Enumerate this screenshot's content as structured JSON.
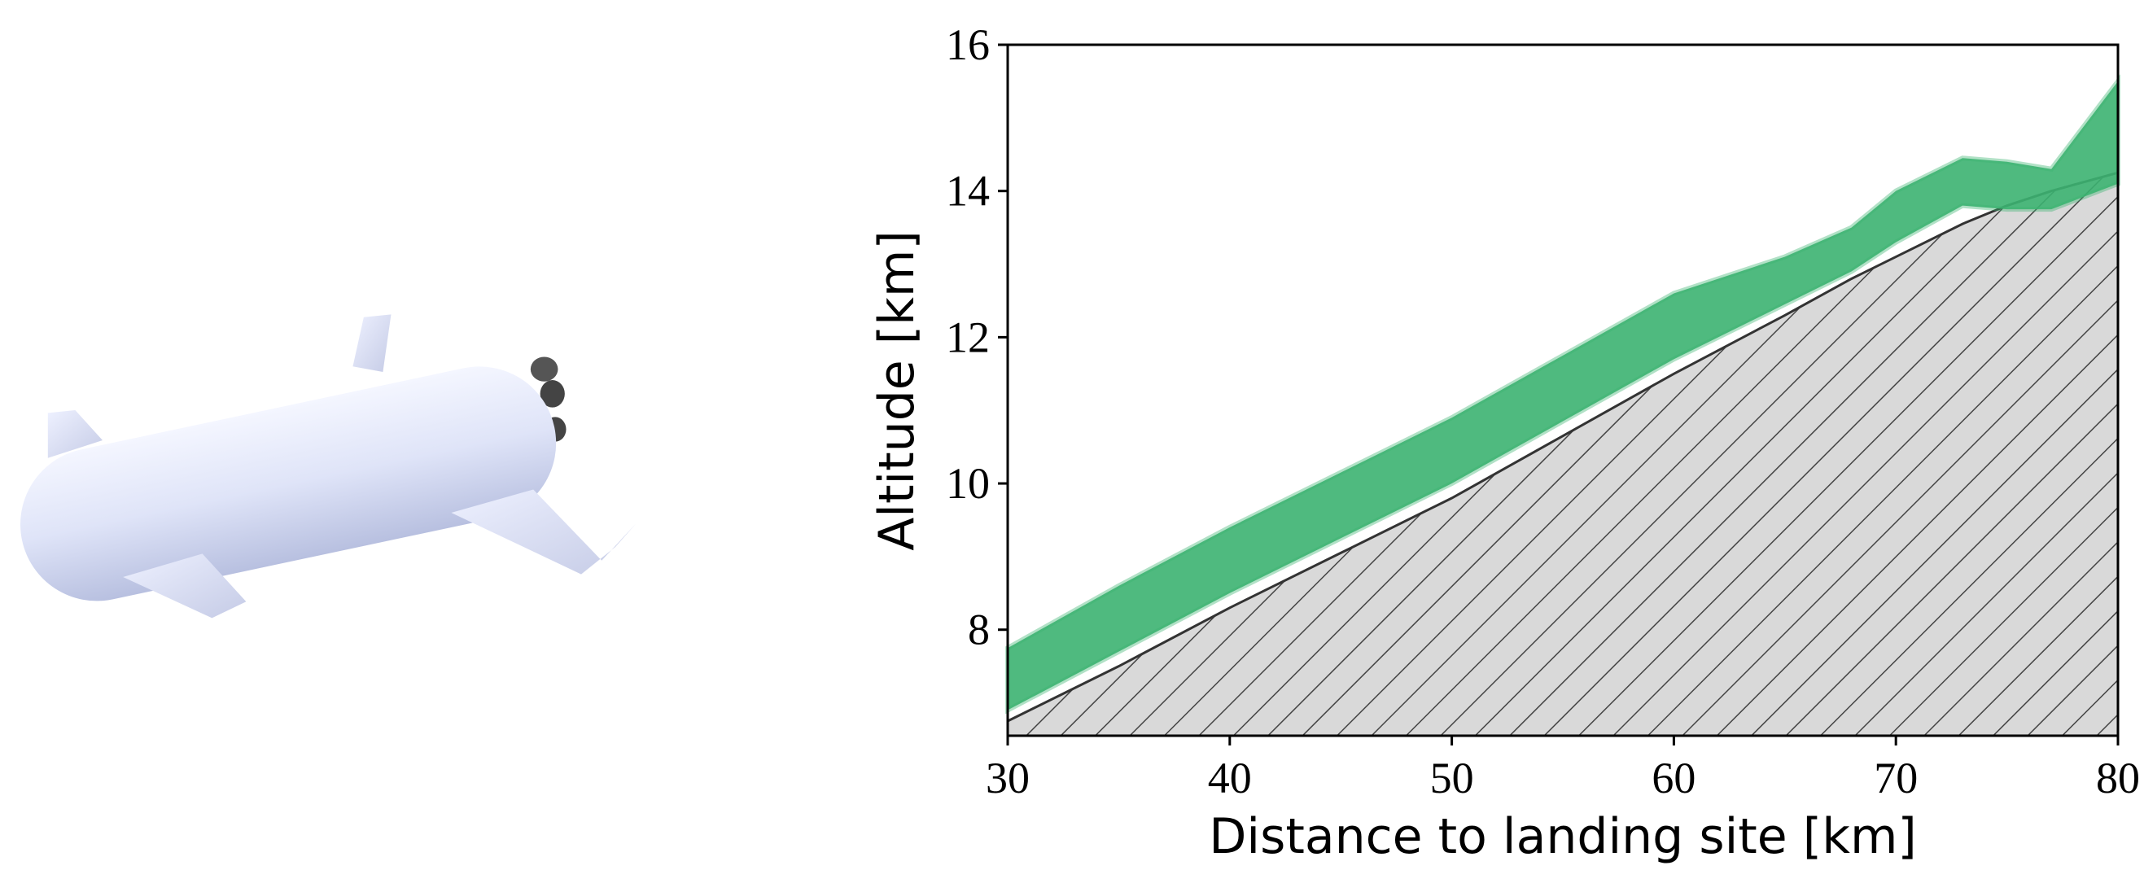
{
  "chart_data": {
    "type": "area",
    "xlabel": "Distance to landing site [km]",
    "ylabel": "Altitude [km]",
    "x": [
      30,
      35,
      40,
      45,
      50,
      55,
      60,
      65,
      68,
      70,
      73,
      75,
      77,
      80
    ],
    "terrain": {
      "color": "#d9d9d9",
      "values": [
        6.75,
        7.5,
        8.3,
        9.05,
        9.8,
        10.65,
        11.5,
        12.3,
        12.8,
        13.1,
        13.55,
        13.8,
        14.0,
        14.25
      ]
    },
    "band": {
      "color": "#3cb371",
      "lower": [
        6.9,
        7.7,
        8.5,
        9.25,
        10.0,
        10.85,
        11.7,
        12.45,
        12.9,
        13.3,
        13.8,
        13.75,
        13.75,
        14.1
      ],
      "upper": [
        7.75,
        8.6,
        9.4,
        10.15,
        10.9,
        11.75,
        12.6,
        13.1,
        13.5,
        14.0,
        14.45,
        14.4,
        14.3,
        15.5
      ]
    },
    "xlim": [
      30,
      80
    ],
    "ylim": [
      6.55,
      16
    ],
    "xticks": [
      30,
      40,
      50,
      60,
      70,
      80
    ],
    "yticks": [
      8,
      10,
      12,
      14,
      16
    ]
  }
}
